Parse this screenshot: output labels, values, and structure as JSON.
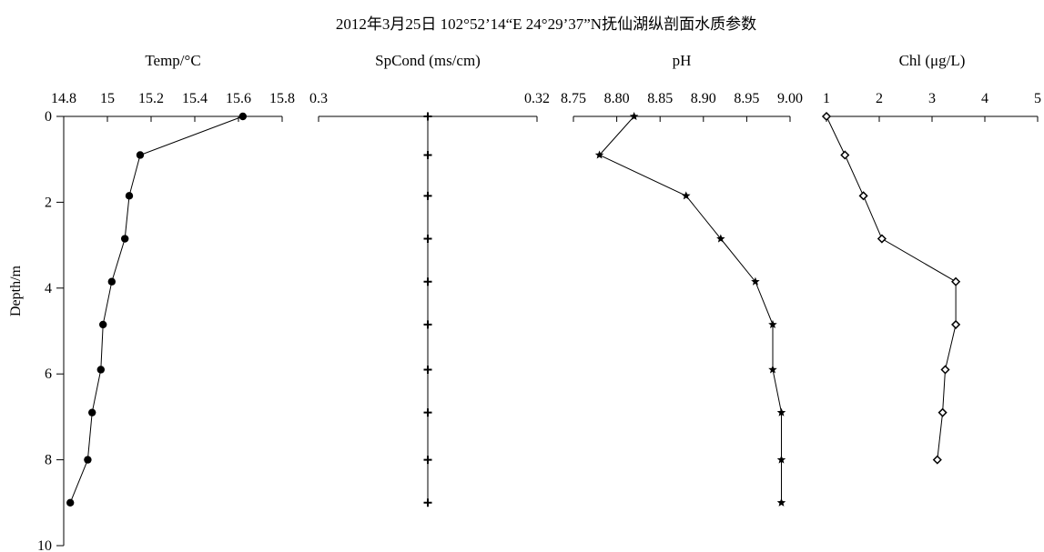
{
  "chart_data": {
    "type": "line",
    "title": "2012年3月25日 102°52’14“E  24°29’37”N抚仙湖纵剖面水质参数",
    "ylabel": "Depth/m",
    "ylim": [
      0,
      10
    ],
    "yticks": [
      "0",
      "2",
      "4",
      "6",
      "8",
      "10"
    ],
    "depth": [
      0,
      0.9,
      1.85,
      2.85,
      3.85,
      4.85,
      5.9,
      6.9,
      8.0,
      9.0
    ],
    "panels": [
      {
        "title": "Temp/°C",
        "xlim": [
          14.8,
          15.8
        ],
        "xticks": [
          14.8,
          15.0,
          15.2,
          15.4,
          15.6,
          15.8
        ],
        "xtick_labels": [
          "14.8",
          "15",
          "15.2",
          "15.4",
          "15.6",
          "15.8"
        ],
        "marker": "circle",
        "values": [
          15.62,
          15.15,
          15.1,
          15.08,
          15.02,
          14.98,
          14.97,
          14.93,
          14.91,
          14.83
        ]
      },
      {
        "title": "SpCond (ms/cm)",
        "xlim": [
          0.3,
          0.32
        ],
        "xticks": [
          0.3,
          0.32
        ],
        "xtick_labels": [
          "0.3",
          "0.32"
        ],
        "marker": "plus",
        "values": [
          0.31,
          0.31,
          0.31,
          0.31,
          0.31,
          0.31,
          0.31,
          0.31,
          0.31,
          0.31
        ]
      },
      {
        "title": "pH",
        "xlim": [
          8.75,
          9.0
        ],
        "xticks": [
          8.75,
          8.8,
          8.85,
          8.9,
          8.95,
          9.0
        ],
        "xtick_labels": [
          "8.75",
          "8.80",
          "8.85",
          "8.90",
          "8.95",
          "9.00"
        ],
        "marker": "star",
        "values": [
          8.82,
          8.78,
          8.88,
          8.92,
          8.96,
          8.98,
          8.98,
          8.99,
          8.99,
          8.99
        ]
      },
      {
        "title": "Chl (μg/L)",
        "xlim": [
          1,
          5
        ],
        "xticks": [
          1,
          2,
          3,
          4,
          5
        ],
        "xtick_labels": [
          "1",
          "2",
          "3",
          "4",
          "5"
        ],
        "marker": "diamond",
        "values": [
          1.0,
          1.35,
          1.7,
          2.05,
          3.45,
          3.45,
          3.25,
          3.2,
          3.1,
          null
        ]
      }
    ]
  }
}
